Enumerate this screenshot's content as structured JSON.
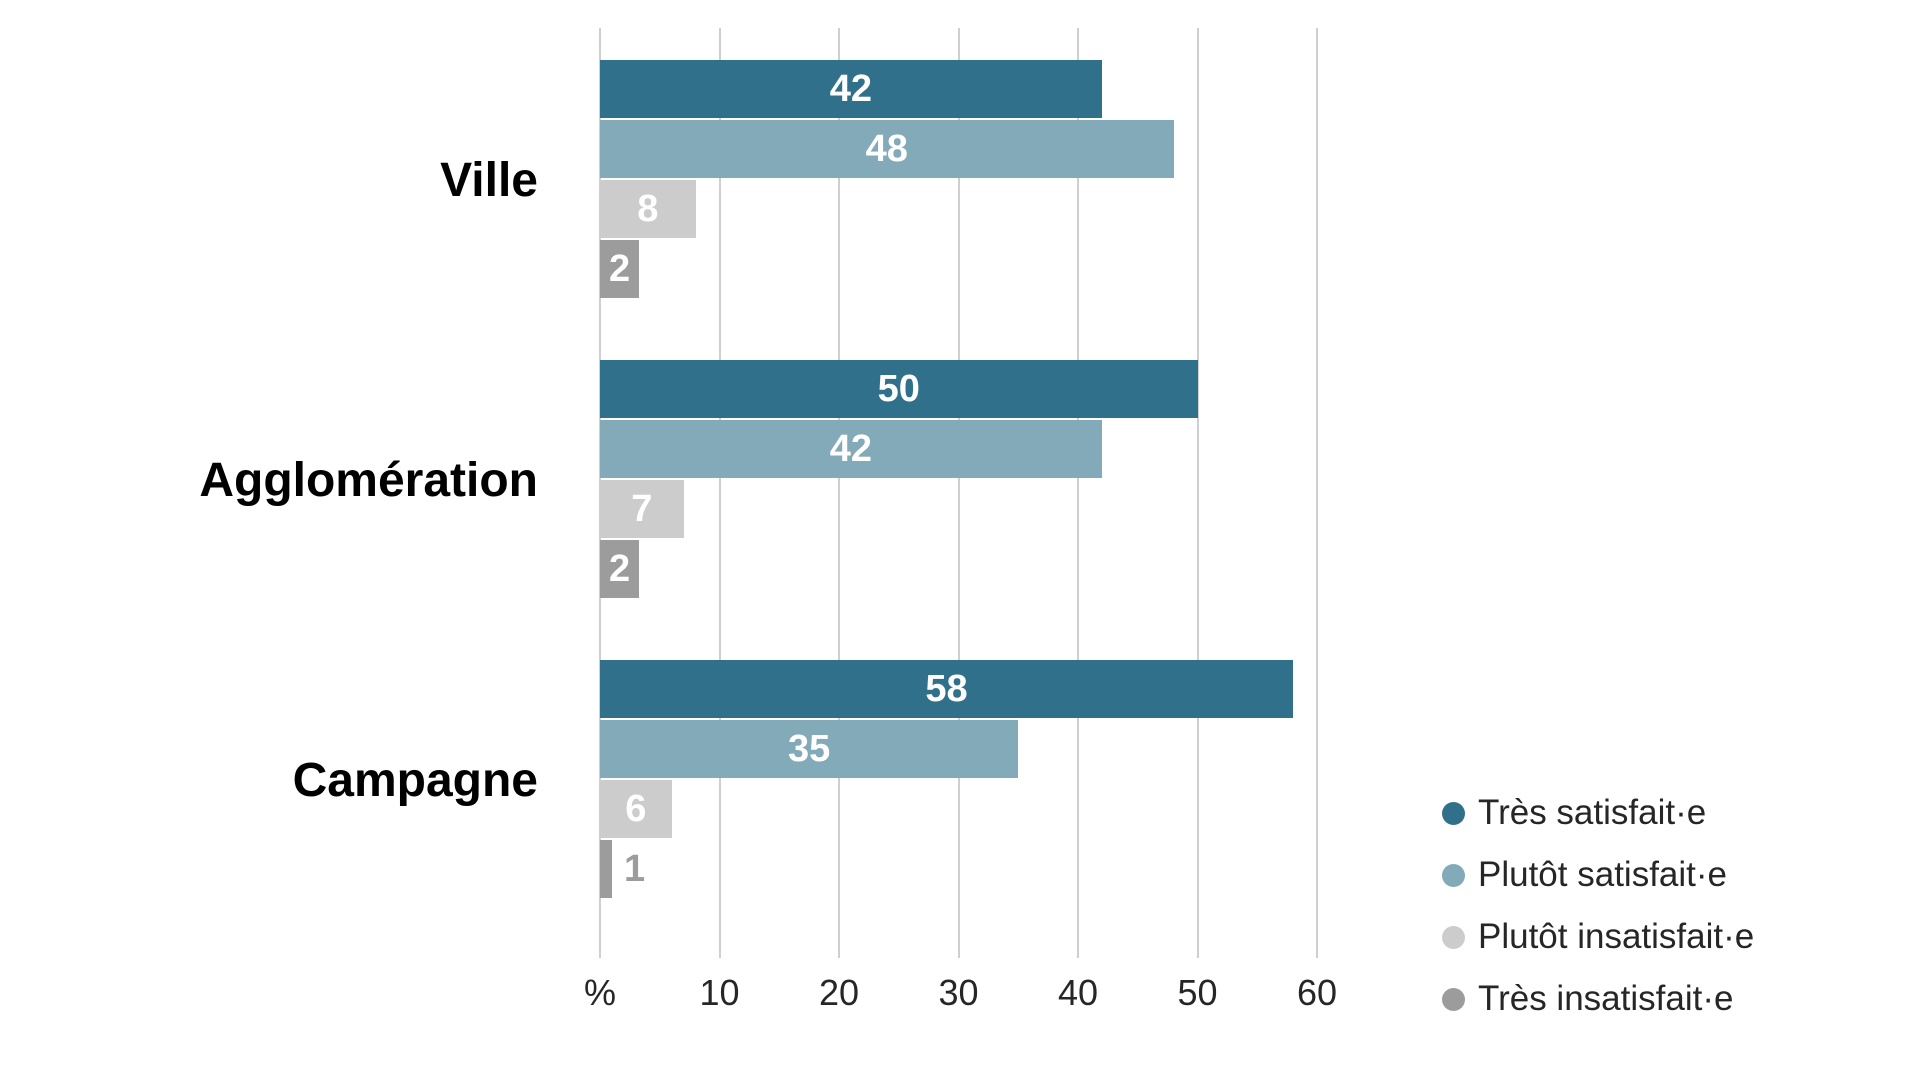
{
  "chart_data": {
    "type": "bar",
    "orientation": "horizontal",
    "title": "",
    "xlabel": "%",
    "ylabel": "",
    "categories": [
      "Ville",
      "Agglomération",
      "Campagne"
    ],
    "series": [
      {
        "name": "Très satisfait·e",
        "color": "#30708a",
        "values": [
          42,
          50,
          58
        ]
      },
      {
        "name": "Plutôt satisfait·e",
        "color": "#83aab8",
        "values": [
          48,
          42,
          35
        ]
      },
      {
        "name": "Plutôt insatisfait·e",
        "color": "#cccccc",
        "values": [
          8,
          7,
          6
        ]
      },
      {
        "name": "Très insatisfait·e",
        "color": "#9c9c9c",
        "values": [
          2,
          2,
          1
        ]
      }
    ],
    "x_axis": {
      "tick_labels": [
        "%",
        "10",
        "20",
        "30",
        "40",
        "50",
        "60"
      ],
      "tick_values": [
        0,
        10,
        20,
        30,
        40,
        50,
        60
      ],
      "min": 0,
      "max": 60
    },
    "grid": true,
    "legend_position": "bottom-right",
    "value_labels": "inside-white-bold",
    "outside_label_color": "#9c9c9c",
    "gridline_color": "#cfcfcf"
  }
}
